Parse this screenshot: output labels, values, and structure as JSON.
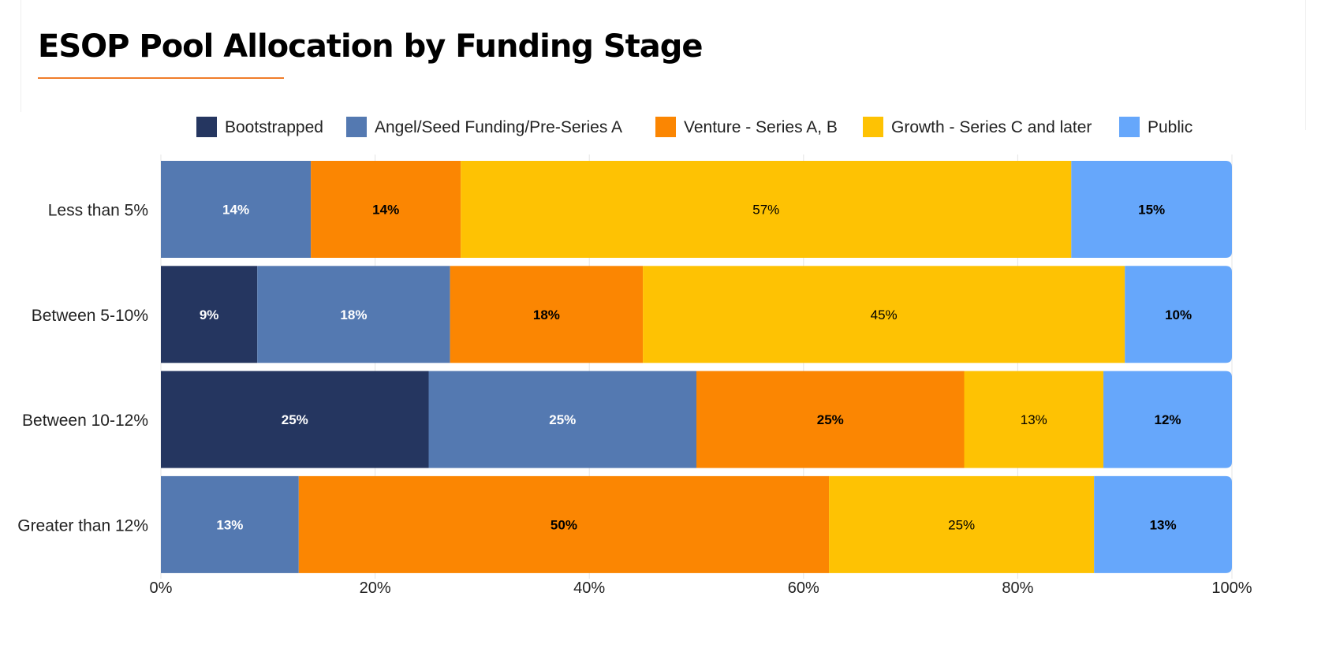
{
  "page": {
    "title": "ESOP Pool Allocation by Funding Stage"
  },
  "chart_data": {
    "type": "bar",
    "orientation": "horizontal",
    "stacked": true,
    "title": "ESOP Pool Allocation by Funding Stage",
    "xlabel": "",
    "ylabel": "",
    "xlim": [
      0,
      100
    ],
    "x_ticks": [
      "0%",
      "20%",
      "40%",
      "60%",
      "80%",
      "100%"
    ],
    "legend_position": "top",
    "grid": true,
    "categories": [
      "Less than 5%",
      "Between 5-10%",
      "Between 10-12%",
      "Greater than 12%"
    ],
    "series": [
      {
        "name": "Bootstrapped",
        "color": "#253660",
        "label_color": "#ffffff",
        "label_weight": "bold",
        "values": [
          0,
          9,
          25,
          0
        ],
        "labels": [
          "",
          "9%",
          "25%",
          ""
        ]
      },
      {
        "name": "Angel/Seed Funding/Pre-Series A",
        "color": "#5479b1",
        "label_color": "#ffffff",
        "label_weight": "bold",
        "values": [
          14,
          18,
          25,
          13
        ],
        "labels": [
          "14%",
          "18%",
          "25%",
          "13%"
        ]
      },
      {
        "name": "Venture - Series A, B",
        "color": "#fb8602",
        "label_color": "#000000",
        "label_weight": "bold",
        "values": [
          14,
          18,
          25,
          50
        ],
        "labels": [
          "14%",
          "18%",
          "25%",
          "50%"
        ]
      },
      {
        "name": "Growth - Series C and later",
        "color": "#fec203",
        "label_color": "#000000",
        "label_weight": "normal",
        "values": [
          57,
          45,
          13,
          25
        ],
        "labels": [
          "57%",
          "45%",
          "13%",
          "25%"
        ]
      },
      {
        "name": "Public",
        "color": "#66a7fb",
        "label_color": "#000000",
        "label_weight": "bold",
        "values": [
          15,
          10,
          12,
          13
        ],
        "labels": [
          "15%",
          "10%",
          "12%",
          "13%"
        ]
      }
    ]
  }
}
